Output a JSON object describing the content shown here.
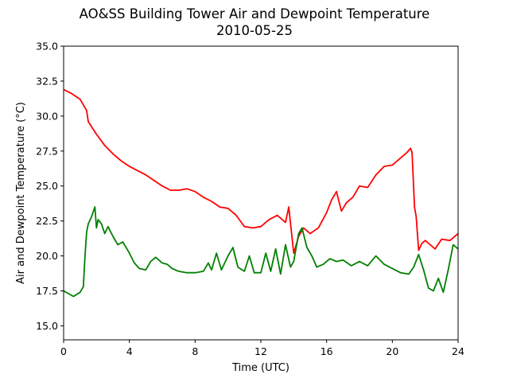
{
  "chart_data": {
    "type": "line",
    "title_line1": "AO&SS Building Tower Air and Dewpoint Temperature",
    "title_line2": "2010-05-25",
    "xlabel": "Time (UTC)",
    "ylabel": "Air and Dewpoint Temperature (°C)",
    "xlim": [
      0,
      24
    ],
    "ylim": [
      14.0,
      35.0
    ],
    "xticks": [
      0,
      4,
      8,
      12,
      16,
      20,
      24
    ],
    "yticks": [
      "15.0",
      "17.5",
      "20.0",
      "22.5",
      "25.0",
      "27.5",
      "30.0",
      "32.5",
      "35.0"
    ],
    "grid": false,
    "series": [
      {
        "color": "#ff0000",
        "x": [
          0,
          0.5,
          1.0,
          1.4,
          1.5,
          2.0,
          2.5,
          3.0,
          3.5,
          4.0,
          4.5,
          5.0,
          5.5,
          6.0,
          6.5,
          7.0,
          7.5,
          8.0,
          8.5,
          9.0,
          9.5,
          10.0,
          10.5,
          11.0,
          11.5,
          12.0,
          12.5,
          13.0,
          13.5,
          13.7,
          14.0,
          14.3,
          14.6,
          15.0,
          15.5,
          16.0,
          16.3,
          16.6,
          16.9,
          17.2,
          17.6,
          18.0,
          18.5,
          19.0,
          19.5,
          20.0,
          20.3,
          20.6,
          20.9,
          21.1,
          21.2,
          21.35,
          21.45,
          21.6,
          21.8,
          22.0,
          22.3,
          22.6,
          23.0,
          23.5,
          24.0
        ],
        "y": [
          31.9,
          31.6,
          31.2,
          30.4,
          29.6,
          28.7,
          27.9,
          27.3,
          26.8,
          26.4,
          26.1,
          25.8,
          25.4,
          25.0,
          24.7,
          24.7,
          24.8,
          24.6,
          24.2,
          23.9,
          23.5,
          23.4,
          22.9,
          22.1,
          22.0,
          22.1,
          22.6,
          22.9,
          22.4,
          23.5,
          20.2,
          21.4,
          22.0,
          21.6,
          22.0,
          23.1,
          24.0,
          24.6,
          23.2,
          23.8,
          24.2,
          25.0,
          24.9,
          25.8,
          26.4,
          26.5,
          26.8,
          27.1,
          27.4,
          27.7,
          27.4,
          23.5,
          22.8,
          20.4,
          20.9,
          21.1,
          20.8,
          20.5,
          21.2,
          21.1,
          21.6
        ]
      },
      {
        "color": "#008000",
        "x": [
          0,
          0.3,
          0.6,
          1.0,
          1.2,
          1.3,
          1.4,
          1.5,
          1.7,
          1.9,
          2.0,
          2.1,
          2.3,
          2.5,
          2.7,
          3.0,
          3.3,
          3.6,
          4.0,
          4.3,
          4.6,
          5.0,
          5.3,
          5.6,
          6.0,
          6.3,
          6.6,
          7.0,
          7.5,
          8.0,
          8.5,
          8.8,
          9.0,
          9.3,
          9.6,
          10.0,
          10.3,
          10.6,
          11.0,
          11.3,
          11.6,
          12.0,
          12.3,
          12.6,
          12.9,
          13.2,
          13.5,
          13.8,
          14.0,
          14.3,
          14.5,
          14.8,
          15.1,
          15.4,
          15.8,
          16.2,
          16.6,
          17.0,
          17.5,
          18.0,
          18.5,
          19.0,
          19.5,
          20.0,
          20.5,
          21.0,
          21.3,
          21.6,
          21.9,
          22.2,
          22.5,
          22.8,
          23.1,
          23.4,
          23.7,
          24.0
        ],
        "y": [
          17.5,
          17.3,
          17.1,
          17.4,
          17.8,
          20.0,
          21.7,
          22.3,
          22.8,
          23.5,
          22.0,
          22.6,
          22.3,
          21.6,
          22.1,
          21.4,
          20.8,
          21.0,
          20.2,
          19.5,
          19.1,
          19.0,
          19.6,
          19.9,
          19.5,
          19.4,
          19.1,
          18.9,
          18.8,
          18.8,
          18.9,
          19.5,
          19.0,
          20.2,
          19.0,
          20.0,
          20.6,
          19.2,
          18.9,
          20.0,
          18.8,
          18.8,
          20.2,
          18.9,
          20.5,
          18.7,
          20.8,
          19.2,
          19.6,
          21.6,
          22.0,
          20.6,
          20.0,
          19.2,
          19.4,
          19.8,
          19.6,
          19.7,
          19.3,
          19.6,
          19.3,
          20.0,
          19.4,
          19.1,
          18.8,
          18.7,
          19.2,
          20.1,
          19.0,
          17.7,
          17.5,
          18.4,
          17.4,
          19.0,
          20.8,
          20.5
        ]
      }
    ]
  }
}
